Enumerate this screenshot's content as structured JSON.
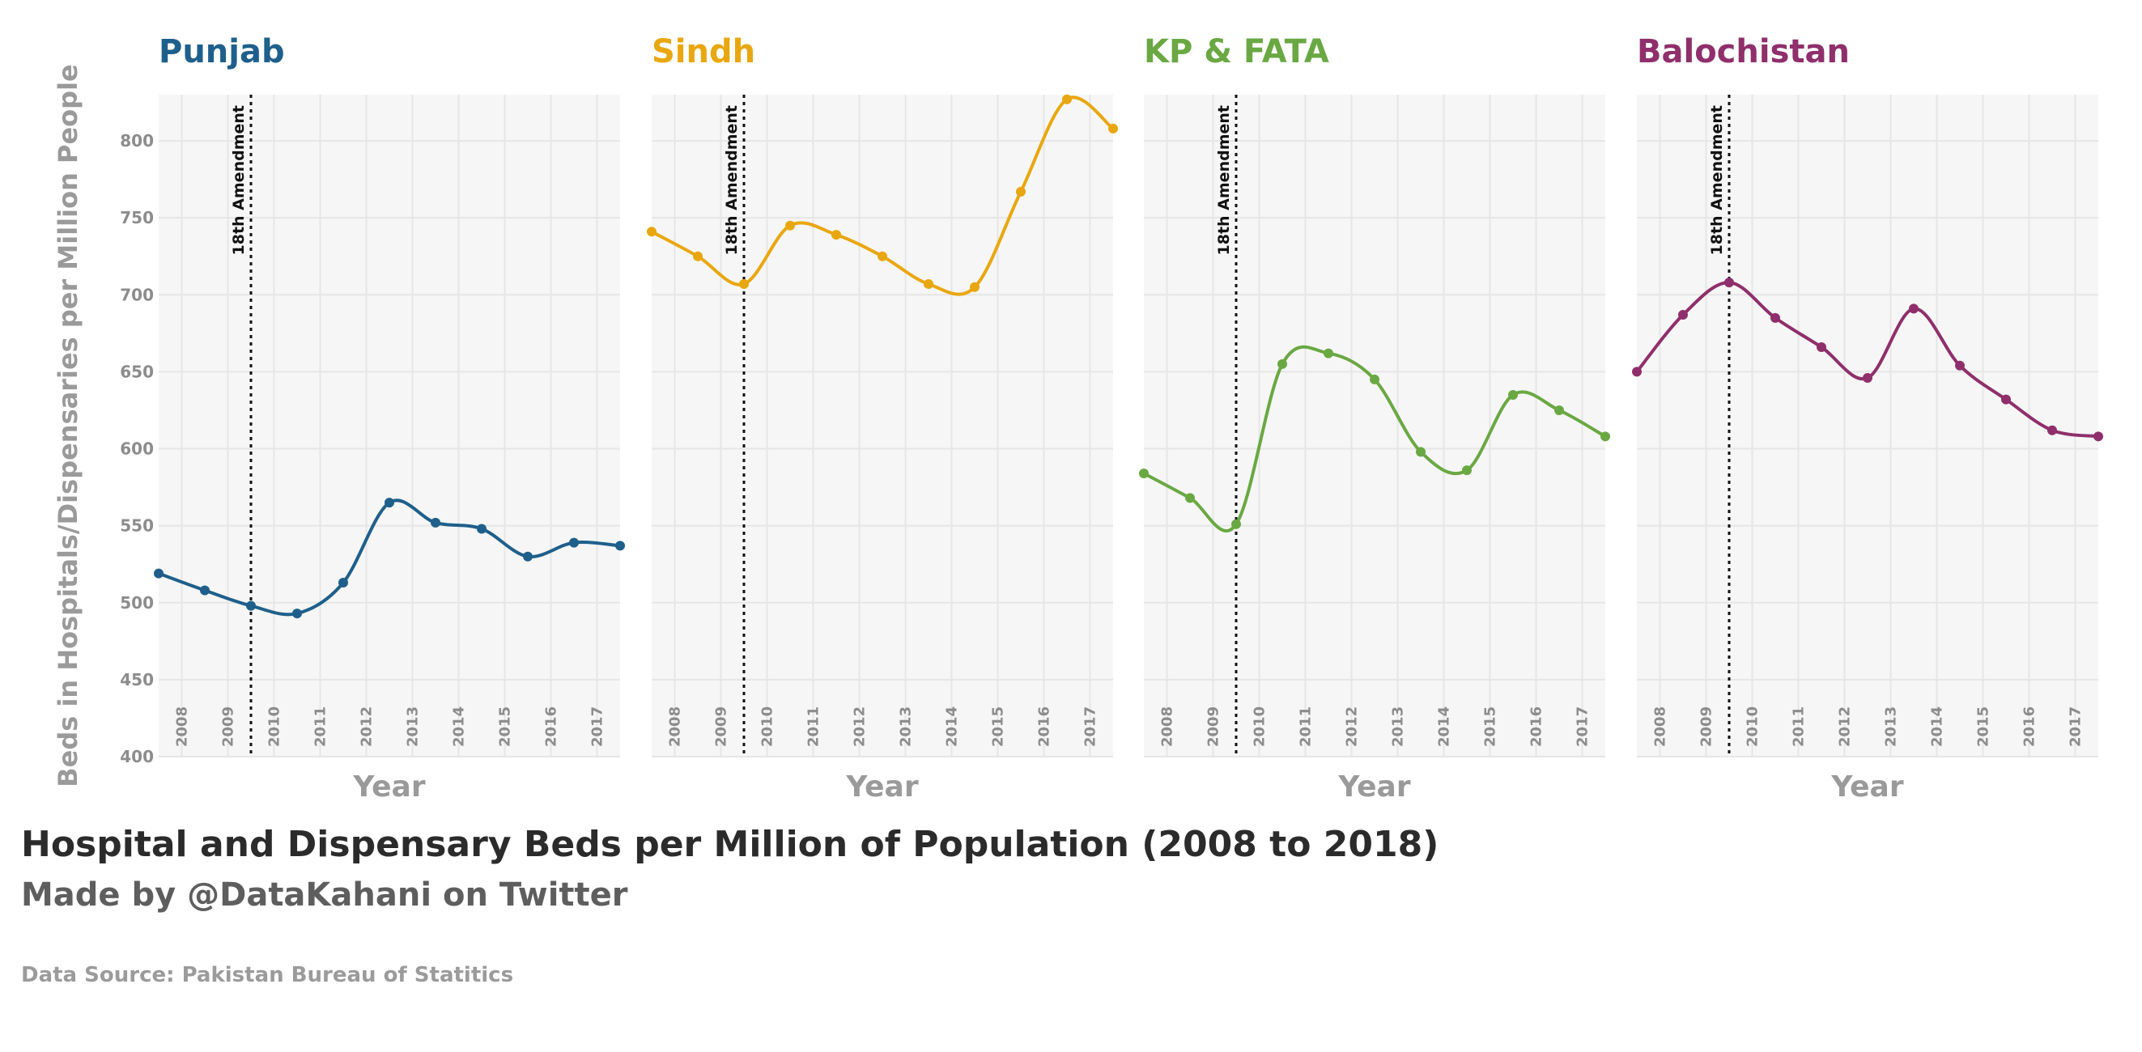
{
  "chart_data": {
    "type": "line",
    "title": "Hospital and Dispensary Beds per Million of Population (2008 to 2018)",
    "subtitle": "Made by @DataKahani on Twitter",
    "caption": "Data Source: Pakistan Bureau of Statitics",
    "xlabel": "Year",
    "ylabel": "Beds in Hospitals/Dispensaries per Million People",
    "ylim": [
      400,
      830
    ],
    "yticks": [
      400,
      450,
      500,
      550,
      600,
      650,
      700,
      750,
      800
    ],
    "xlim": [
      2007.5,
      2017.5
    ],
    "xticks": [
      "2008",
      "2009",
      "2010",
      "2011",
      "2012",
      "2013",
      "2014",
      "2015",
      "2016",
      "2017"
    ],
    "x": [
      2007.5,
      2008.5,
      2009.5,
      2010.5,
      2011.5,
      2012.5,
      2013.5,
      2014.5,
      2015.5,
      2016.5,
      2017.5
    ],
    "grid": true,
    "legend": "none",
    "annotation": {
      "label": "18th Amendment",
      "x": 2009.5
    },
    "series": [
      {
        "name": "Punjab",
        "color": "#1f5f8b",
        "values": [
          519,
          508,
          498,
          493,
          513,
          565,
          552,
          548,
          530,
          539,
          537
        ]
      },
      {
        "name": "Sindh",
        "color": "#e9a70f",
        "values": [
          741,
          725,
          707,
          745,
          739,
          725,
          707,
          705,
          767,
          827,
          808
        ]
      },
      {
        "name": "KP & FATA",
        "color": "#6aa843",
        "values": [
          584,
          568,
          551,
          655,
          662,
          645,
          598,
          586,
          635,
          625,
          608
        ]
      },
      {
        "name": "Balochistan",
        "color": "#8f2f6b",
        "values": [
          650,
          687,
          708,
          685,
          666,
          646,
          691,
          654,
          632,
          612,
          608
        ]
      }
    ]
  }
}
